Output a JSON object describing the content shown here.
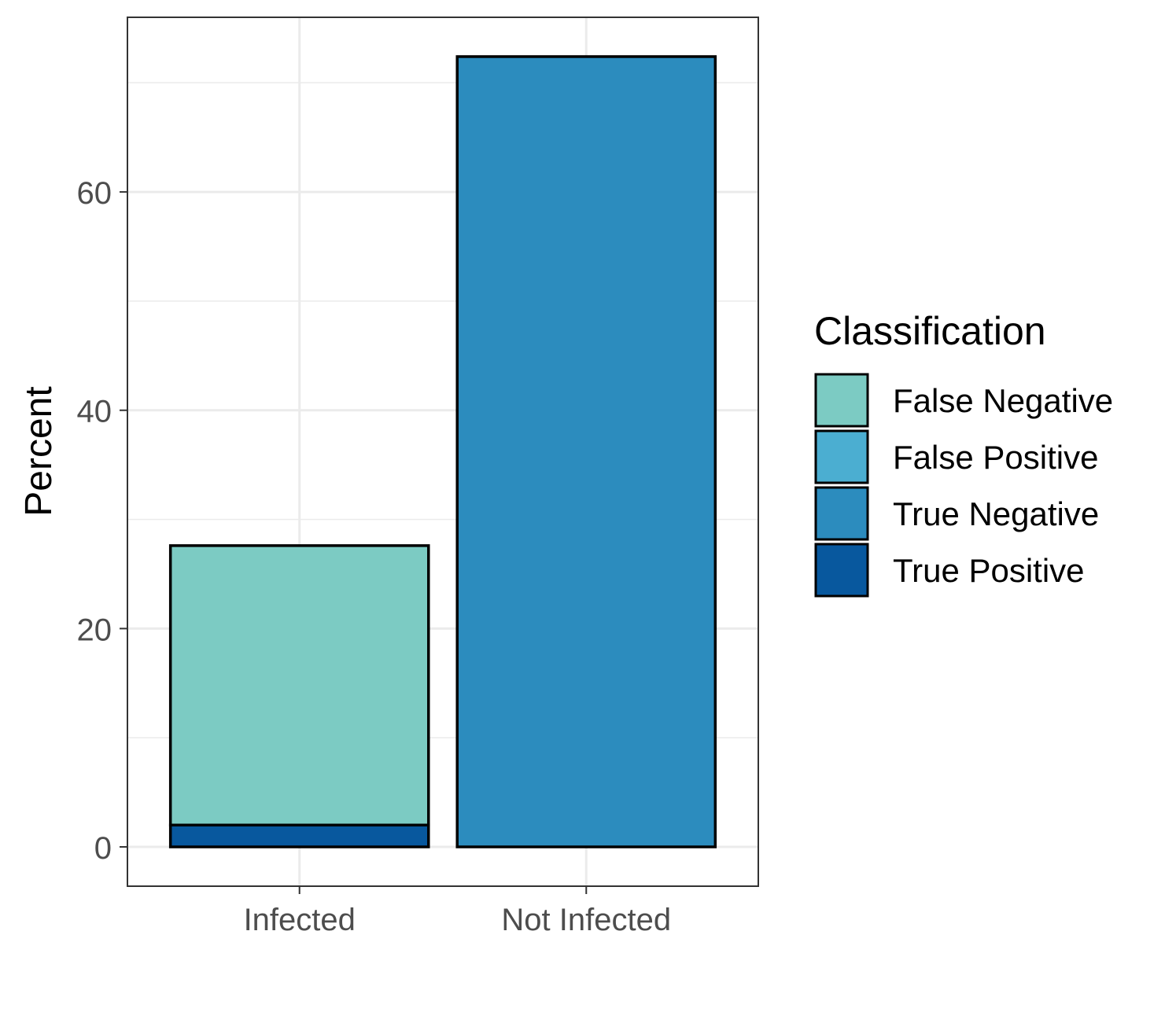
{
  "chart_data": {
    "type": "bar",
    "stacked": true,
    "categories": [
      "Infected",
      "Not Infected"
    ],
    "series": [
      {
        "name": "False Negative",
        "values": [
          25.6,
          0
        ],
        "color": "#7CCBC3"
      },
      {
        "name": "False Positive",
        "values": [
          0,
          0
        ],
        "color": "#4BAED1"
      },
      {
        "name": "True Negative",
        "values": [
          0,
          72.4
        ],
        "color": "#2C8CBE"
      },
      {
        "name": "True Positive",
        "values": [
          2.0,
          0
        ],
        "color": "#08589E"
      }
    ],
    "stack_order_bottom_to_top": [
      "True Positive",
      "True Negative",
      "False Positive",
      "False Negative"
    ],
    "xlabel": "",
    "ylabel": "Percent",
    "ylim": [
      -3.6,
      76.0
    ],
    "yticks": [
      0,
      20,
      40,
      60
    ],
    "ytick_labels": [
      "0",
      "20",
      "40",
      "60"
    ],
    "grid": true,
    "legend": {
      "title": "Classification",
      "placement": "right",
      "entries": [
        "False Negative",
        "False Positive",
        "True Negative",
        "True Positive"
      ]
    }
  }
}
